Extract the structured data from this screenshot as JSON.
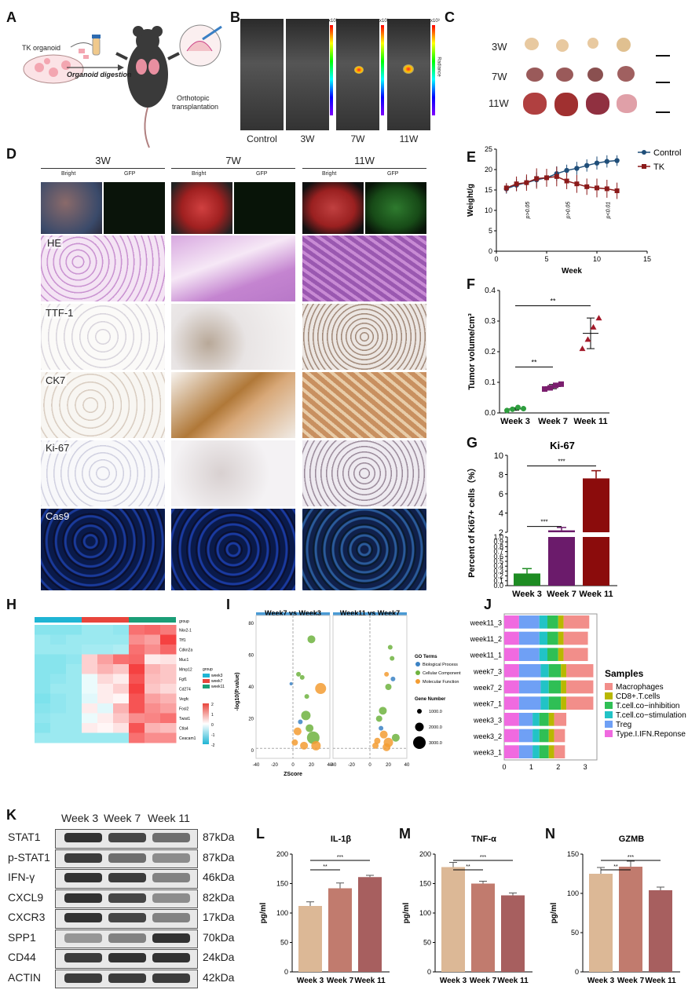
{
  "panels": {
    "A": {
      "label": "A",
      "text_organoid": "TK organoid",
      "text_digestion": "Organoid digestion",
      "text_transplant_1": "Orthotopic",
      "text_transplant_2": "transplantation"
    },
    "B": {
      "label": "B",
      "timepoints": [
        "Control",
        "3W",
        "7W",
        "11W"
      ],
      "scale_labels": [
        "x10³",
        "x10³",
        "x10³"
      ],
      "scale_unit": "Radiance"
    },
    "C": {
      "label": "C",
      "rows": [
        "3W",
        "7W",
        "11W"
      ]
    },
    "D": {
      "label": "D",
      "columns": [
        "3W",
        "7W",
        "11W"
      ],
      "subcols": [
        "Bright",
        "GFP"
      ],
      "stains": [
        "HE",
        "TTF-1",
        "CK7",
        "Ki-67",
        "Cas9"
      ]
    },
    "E": {
      "label": "E"
    },
    "F": {
      "label": "F"
    },
    "G": {
      "label": "G"
    },
    "H": {
      "label": "H",
      "group_label": "group",
      "genes": [
        "Nkx2-1",
        "Tff1",
        "Cdkn2a",
        "Muc1",
        "Mmp12",
        "Fgf1",
        "Cd274",
        "Vegfc",
        "Fosl2",
        "Twist1",
        "Ctla4",
        "Ceacam1"
      ],
      "legend_title": "group",
      "legend_items": [
        "week3",
        "week7",
        "week11"
      ],
      "legend_colors": [
        "#1fb5d4",
        "#e8453c",
        "#1b9e77"
      ],
      "colorbar_ticks": [
        "2",
        "1",
        "0",
        "-1",
        "-2"
      ]
    },
    "I": {
      "label": "I",
      "facets": [
        "Week7 vs Week3",
        "Week11 vs Week7"
      ],
      "ylabel": "-log10(P.value)",
      "xlabel": "ZScore",
      "xticks": [
        "-40",
        "-20",
        "0",
        "20",
        "40"
      ],
      "yticks": [
        "80",
        "60",
        "40",
        "20",
        "0"
      ],
      "go_title": "GO Terms",
      "go_items": [
        "Biological Process",
        "Cellular Component",
        "Molecular Function"
      ],
      "go_colors": [
        "#3b82c4",
        "#6fb33f",
        "#f39c32"
      ],
      "gene_title": "Gene Number",
      "gene_items": [
        "1000.0",
        "2000.0",
        "3000.0"
      ]
    },
    "J": {
      "label": "J",
      "samples_title": "Samples",
      "samples": [
        "week11_3",
        "week11_2",
        "week11_1",
        "week7_3",
        "week7_2",
        "week7_1",
        "week3_3",
        "week3_2",
        "week3_1"
      ],
      "legend": [
        "Macrophages",
        "CD8+.T.cells",
        "T.cell.co−inhibition",
        "T.cell.co−stimulation",
        "Treg",
        "Type.I.IFN.Reponse"
      ],
      "colors": [
        "#f28e8a",
        "#b8b800",
        "#2fbf55",
        "#22c3c6",
        "#6fa0f5",
        "#f06ae0"
      ],
      "xticks": [
        "0",
        "1",
        "2",
        "3"
      ]
    },
    "K": {
      "label": "K",
      "columns": [
        "Week 3",
        "Week 7",
        "Week 11"
      ],
      "proteins": [
        "STAT1",
        "p-STAT1",
        "IFN-γ",
        "CXCL9",
        "CXCR3",
        "SPP1",
        "CD44",
        "ACTIN"
      ],
      "sizes": [
        "87kDa",
        "87kDa",
        "46kDa",
        "82kDa",
        "17kDa",
        "70kDa",
        "24kDa",
        "42kDa"
      ],
      "intensity": [
        [
          0.9,
          0.8,
          0.6
        ],
        [
          0.85,
          0.6,
          0.45
        ],
        [
          0.9,
          0.85,
          0.5
        ],
        [
          0.9,
          0.8,
          0.45
        ],
        [
          0.9,
          0.8,
          0.5
        ],
        [
          0.4,
          0.5,
          0.9
        ],
        [
          0.85,
          0.9,
          0.9
        ],
        [
          0.85,
          0.85,
          0.85
        ]
      ]
    },
    "L": {
      "label": "L"
    },
    "M": {
      "label": "M"
    },
    "N": {
      "label": "N"
    }
  },
  "chart_data": [
    {
      "id": "E",
      "type": "line",
      "xlabel": "Week",
      "ylabel": "Weight/g",
      "xlim": [
        0,
        15
      ],
      "ylim": [
        0,
        25
      ],
      "xticks": [
        0,
        5,
        10,
        15
      ],
      "yticks": [
        0,
        5,
        10,
        15,
        20,
        25
      ],
      "series": [
        {
          "name": "Control",
          "color": "#1f4e79",
          "x": [
            1,
            2,
            3,
            4,
            5,
            6,
            7,
            8,
            9,
            10,
            11,
            12
          ],
          "y": [
            15.3,
            16.2,
            16.8,
            17.5,
            18.0,
            19.0,
            19.8,
            20.3,
            21.0,
            21.6,
            22.0,
            22.2
          ],
          "err": [
            1.2,
            1.5,
            1.5,
            1.8,
            1.6,
            1.8,
            1.4,
            1.6,
            1.5,
            1.6,
            1.5,
            1.3
          ]
        },
        {
          "name": "TK",
          "color": "#8b1a1a",
          "x": [
            1,
            2,
            3,
            4,
            5,
            6,
            7,
            8,
            9,
            10,
            11,
            12
          ],
          "y": [
            15.5,
            16.5,
            16.8,
            17.8,
            18.0,
            18.3,
            17.2,
            16.5,
            15.8,
            15.5,
            15.3,
            14.8
          ],
          "err": [
            1.2,
            1.8,
            2.0,
            2.5,
            2.2,
            2.4,
            2.0,
            2.2,
            2.0,
            2.3,
            2.2,
            2.0
          ]
        }
      ],
      "annotations": [
        {
          "text": "p>0.05",
          "x": 3.3
        },
        {
          "text": "p>0.05",
          "x": 7.3
        },
        {
          "text": "p<0.01",
          "x": 11.3
        }
      ]
    },
    {
      "id": "F",
      "type": "scatter",
      "ylabel": "Tumor volume/cm³",
      "categories": [
        "Week 3",
        "Week 7",
        "Week 11"
      ],
      "colors": [
        "#2e9e3e",
        "#7b1e6e",
        "#a31a2a"
      ],
      "points": [
        [
          0.008,
          0.012,
          0.018,
          0.014
        ],
        [
          0.078,
          0.082,
          0.09,
          0.094
        ],
        [
          0.21,
          0.24,
          0.28,
          0.31
        ]
      ],
      "means": [
        0.013,
        0.086,
        0.26
      ],
      "sd": [
        0.004,
        0.007,
        0.05
      ],
      "ylim": [
        0,
        0.4
      ],
      "yticks": [
        0.0,
        0.1,
        0.2,
        0.3,
        0.4
      ],
      "sig": [
        {
          "from": 0,
          "to": 1,
          "text": "**"
        },
        {
          "from": 0,
          "to": 2,
          "text": "**"
        }
      ]
    },
    {
      "id": "G",
      "type": "bar",
      "title": "Ki-67",
      "ylabel": "Percent of Ki67+ cells（%）",
      "categories": [
        "Week 3",
        "Week 7",
        "Week 11"
      ],
      "values": [
        0.25,
        2.2,
        7.6
      ],
      "errors": [
        0.1,
        0.3,
        0.8
      ],
      "colors": [
        "#1e8c23",
        "#6b1b6b",
        "#8b0c0c"
      ],
      "yticks_low": [
        "0.0",
        "0.1",
        "0.2",
        "0.3",
        "0.4",
        "0.5",
        "0.6",
        "0.7",
        "0.8",
        "0.9",
        "1.0"
      ],
      "yticks_high": [
        "2",
        "4",
        "6",
        "8",
        "10"
      ],
      "sig": [
        {
          "from": 0,
          "to": 1,
          "text": "***"
        },
        {
          "from": 0,
          "to": 2,
          "text": "***"
        }
      ]
    },
    {
      "id": "L",
      "type": "bar",
      "title": "IL-1β",
      "ylabel": "pg/ml",
      "categories": [
        "Week 3",
        "Week 7",
        "Week 11"
      ],
      "values": [
        112,
        142,
        161
      ],
      "errors": [
        7,
        9,
        3
      ],
      "colors": [
        "#dcb896",
        "#c17b6e",
        "#a75f5f"
      ],
      "ylim": [
        0,
        200
      ],
      "yticks": [
        0,
        50,
        100,
        150,
        200
      ],
      "sig": [
        {
          "from": 0,
          "to": 1,
          "text": "**"
        },
        {
          "from": 0,
          "to": 2,
          "text": "***"
        }
      ]
    },
    {
      "id": "M",
      "type": "bar",
      "title": "TNF-α",
      "ylabel": "pg/ml",
      "categories": [
        "Week 3",
        "Week 7",
        "Week 11"
      ],
      "values": [
        178,
        150,
        130
      ],
      "errors": [
        8,
        4,
        4
      ],
      "colors": [
        "#dcb896",
        "#c17b6e",
        "#a75f5f"
      ],
      "ylim": [
        0,
        200
      ],
      "yticks": [
        0,
        50,
        100,
        150,
        200
      ],
      "sig": [
        {
          "from": 0,
          "to": 1,
          "text": "**"
        },
        {
          "from": 0,
          "to": 2,
          "text": "***"
        }
      ]
    },
    {
      "id": "N",
      "type": "bar",
      "title": "GZMB",
      "ylabel": "pg/ml",
      "categories": [
        "Week 3",
        "Week 7",
        "Week 11"
      ],
      "values": [
        125,
        134,
        104
      ],
      "errors": [
        8,
        7,
        4
      ],
      "colors": [
        "#dcb896",
        "#c17b6e",
        "#a75f5f"
      ],
      "ylim": [
        0,
        150
      ],
      "yticks": [
        0,
        50,
        100,
        150
      ],
      "sig": [
        {
          "from": 0,
          "to": 1,
          "text": "**"
        },
        {
          "from": 0,
          "to": 2,
          "text": "***"
        }
      ]
    },
    {
      "id": "J",
      "type": "bar",
      "orientation": "horizontal-stacked",
      "samples": [
        "week11_3",
        "week11_2",
        "week11_1",
        "week7_3",
        "week7_2",
        "week7_1",
        "week3_3",
        "week3_2",
        "week3_1"
      ],
      "series": [
        {
          "name": "Type.I.IFN.Reponse",
          "values": [
            0.55,
            0.55,
            0.55,
            0.55,
            0.55,
            0.55,
            0.55,
            0.55,
            0.55
          ]
        },
        {
          "name": "Treg",
          "values": [
            0.75,
            0.75,
            0.75,
            0.8,
            0.8,
            0.8,
            0.5,
            0.5,
            0.5
          ]
        },
        {
          "name": "T.cell.co−stimulation",
          "values": [
            0.3,
            0.3,
            0.3,
            0.3,
            0.3,
            0.3,
            0.25,
            0.25,
            0.25
          ]
        },
        {
          "name": "T.cell.co−inhibition",
          "values": [
            0.4,
            0.4,
            0.4,
            0.45,
            0.45,
            0.45,
            0.35,
            0.35,
            0.35
          ]
        },
        {
          "name": "CD8+.T.cells",
          "values": [
            0.2,
            0.2,
            0.2,
            0.2,
            0.2,
            0.2,
            0.2,
            0.2,
            0.2
          ]
        },
        {
          "name": "Macrophages",
          "values": [
            0.95,
            0.9,
            0.9,
            1.0,
            1.0,
            1.0,
            0.45,
            0.4,
            0.4
          ]
        }
      ]
    }
  ]
}
